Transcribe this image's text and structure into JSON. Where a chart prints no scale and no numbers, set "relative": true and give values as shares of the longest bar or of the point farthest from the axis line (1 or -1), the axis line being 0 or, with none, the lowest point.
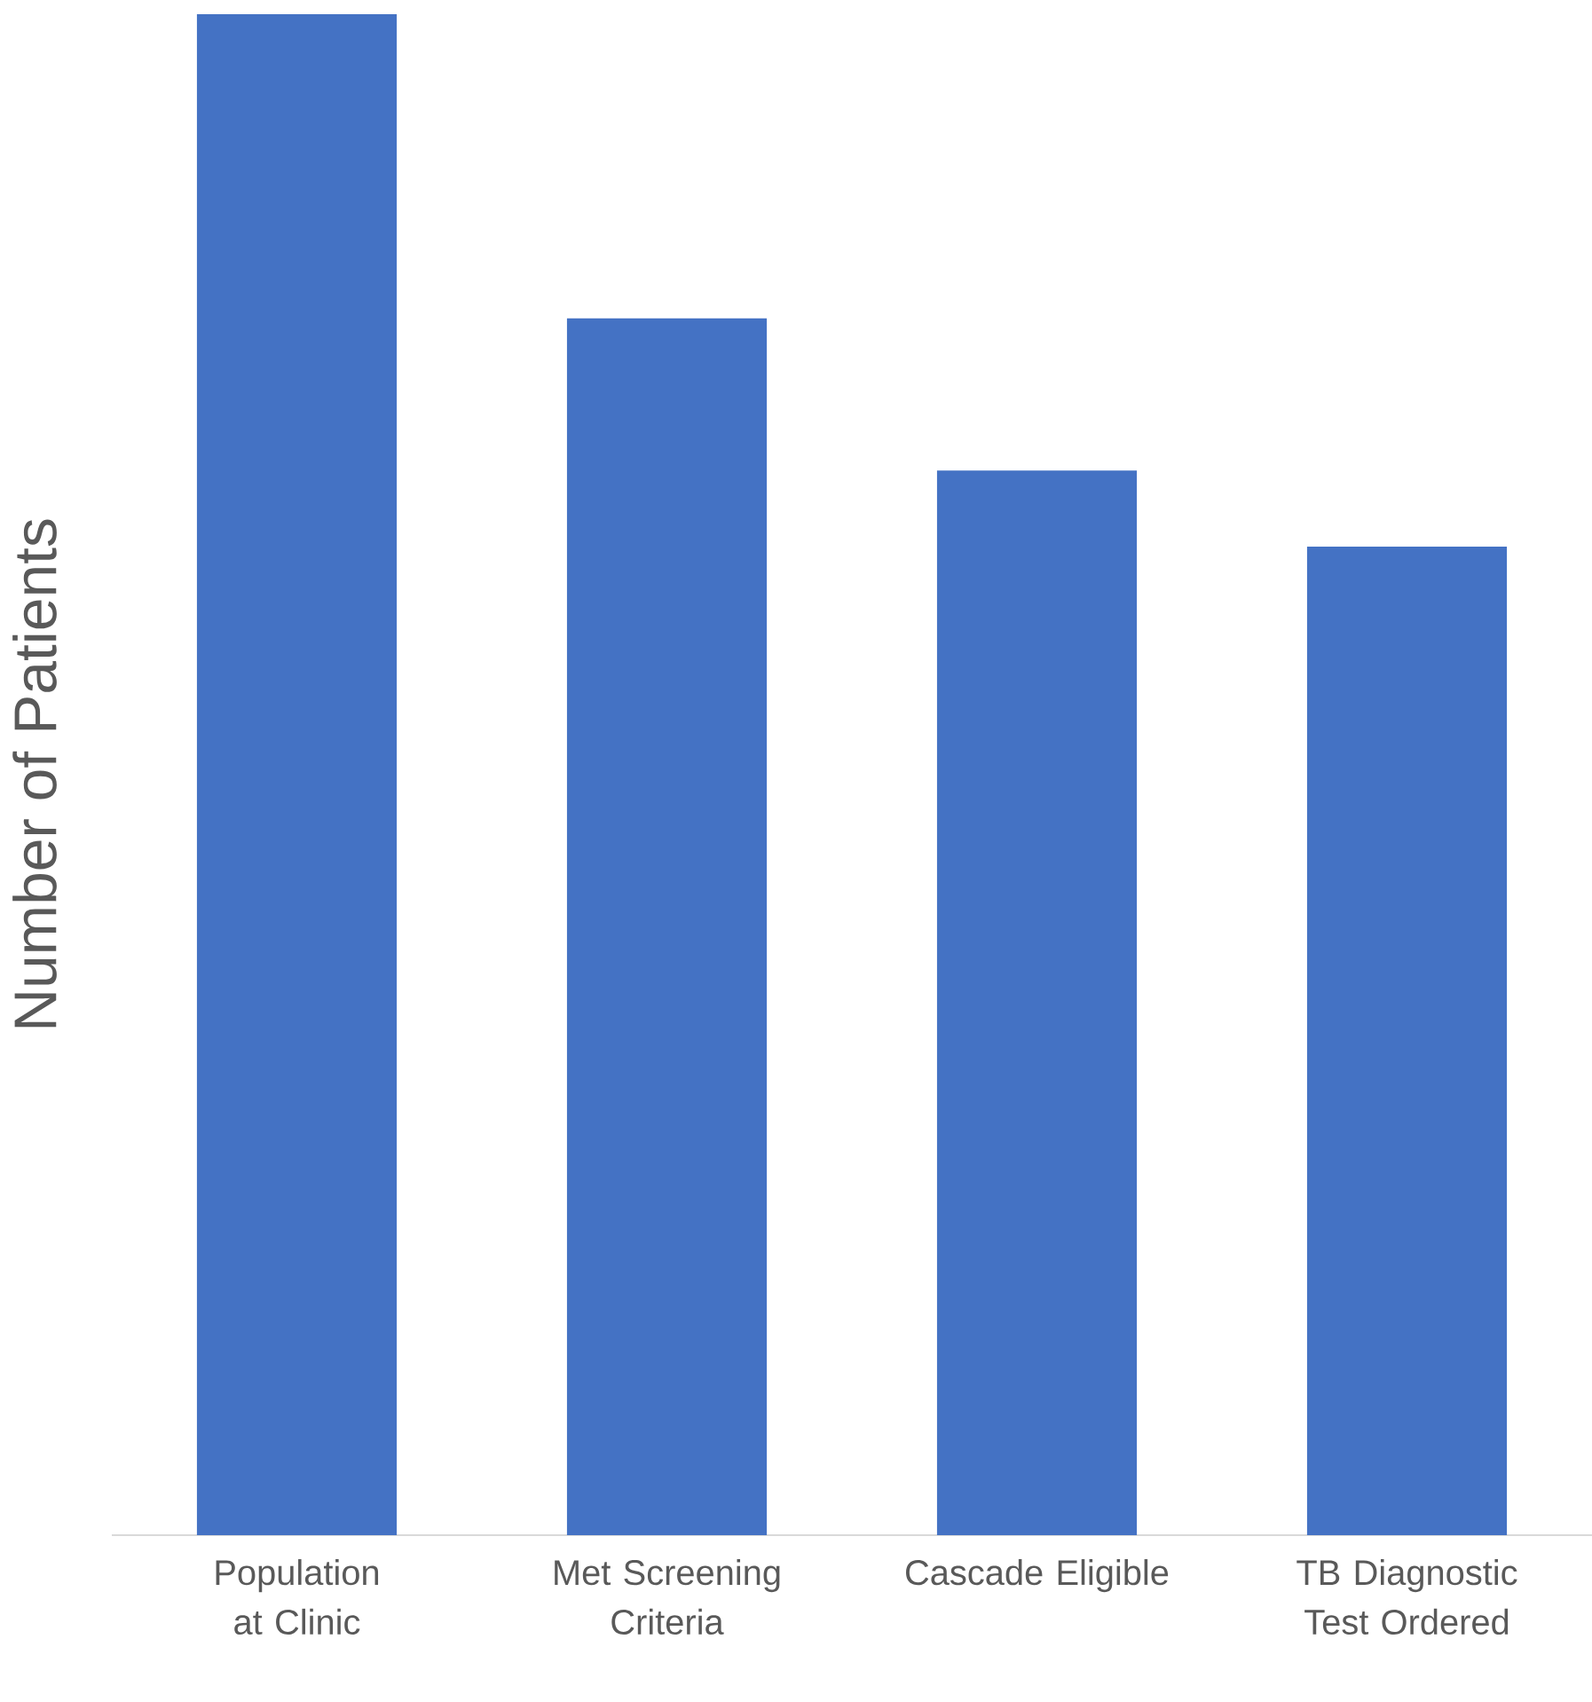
{
  "chart_data": {
    "type": "bar",
    "ylabel": "Number of Patients",
    "categories": [
      "Population at Clinic",
      "Met Screening Criteria",
      "Cascade Eligible",
      "TB Diagnostic Test Ordered"
    ],
    "values": [
      1,
      0.8,
      0.7,
      0.65
    ],
    "color": "#4472c4",
    "relative": true
  }
}
